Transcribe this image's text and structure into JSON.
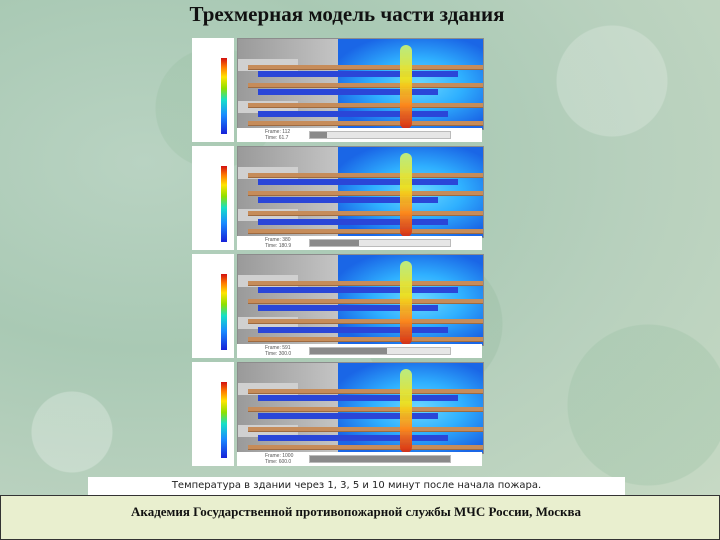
{
  "slide": {
    "title": "Трехмерная модель части здания",
    "caption": "Температура в здании через 1, 3, 5 и 10 минут после начала пожара.",
    "footer": "Академия Государственной противопожарной службы МЧС России, Москва"
  },
  "colorbar": {
    "colors": [
      "#d21010",
      "#ff7a00",
      "#ffe400",
      "#8ee000",
      "#16e0c8",
      "#1a8cff",
      "#1722d8"
    ]
  },
  "frames": [
    {
      "frame_label": "Frame: 112",
      "time_label": "Time: 61.7",
      "progress": 0.12
    },
    {
      "frame_label": "Frame: 380",
      "time_label": "Time: 180.9",
      "progress": 0.35
    },
    {
      "frame_label": "Frame: 591",
      "time_label": "Time: 300.0",
      "progress": 0.55
    },
    {
      "frame_label": "Frame: 1000",
      "time_label": "Time: 600.0",
      "progress": 1.0
    }
  ]
}
